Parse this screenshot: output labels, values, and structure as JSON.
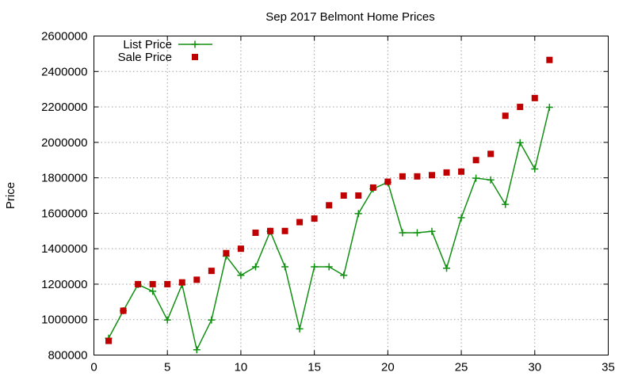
{
  "chart_data": {
    "type": "scatter",
    "title": "Sep 2017 Belmont Home Prices",
    "xlabel": "",
    "ylabel": "Price",
    "xlim": [
      0,
      35
    ],
    "ylim": [
      800000,
      2600000
    ],
    "xticks": [
      0,
      5,
      10,
      15,
      20,
      25,
      30,
      35
    ],
    "yticks": [
      800000,
      1000000,
      1200000,
      1400000,
      1600000,
      1800000,
      2000000,
      2200000,
      2400000,
      2600000
    ],
    "grid": true,
    "legend_position": "top-left",
    "series": [
      {
        "name": "List Price",
        "style": "line-plus",
        "color": "#109010",
        "x": [
          1,
          2,
          3,
          4,
          5,
          6,
          7,
          8,
          9,
          10,
          11,
          12,
          13,
          14,
          15,
          16,
          17,
          18,
          19,
          20,
          21,
          22,
          23,
          24,
          25,
          26,
          27,
          28,
          29,
          30,
          31
        ],
        "y": [
          895000,
          1050000,
          1198000,
          1160000,
          998000,
          1198000,
          830000,
          998000,
          1358000,
          1250000,
          1298000,
          1498000,
          1298000,
          948000,
          1298000,
          1298000,
          1250000,
          1598000,
          1738000,
          1775000,
          1490000,
          1490000,
          1498000,
          1290000,
          1575000,
          1798000,
          1788000,
          1650000,
          1998000,
          1850000,
          2198000
        ]
      },
      {
        "name": "Sale Price",
        "style": "square-points",
        "color": "#c00000",
        "x": [
          1,
          2,
          3,
          4,
          5,
          6,
          7,
          8,
          9,
          10,
          11,
          12,
          13,
          14,
          15,
          16,
          17,
          18,
          19,
          20,
          21,
          22,
          23,
          24,
          25,
          26,
          27,
          28,
          29,
          30,
          31
        ],
        "y": [
          880000,
          1050000,
          1200000,
          1200000,
          1200000,
          1210000,
          1225000,
          1275000,
          1375000,
          1400000,
          1490000,
          1500000,
          1500000,
          1550000,
          1570000,
          1645000,
          1700000,
          1700000,
          1745000,
          1778000,
          1808000,
          1808000,
          1815000,
          1830000,
          1835000,
          1900000,
          1935000,
          2150000,
          2200000,
          2250000,
          2465000
        ]
      }
    ]
  }
}
